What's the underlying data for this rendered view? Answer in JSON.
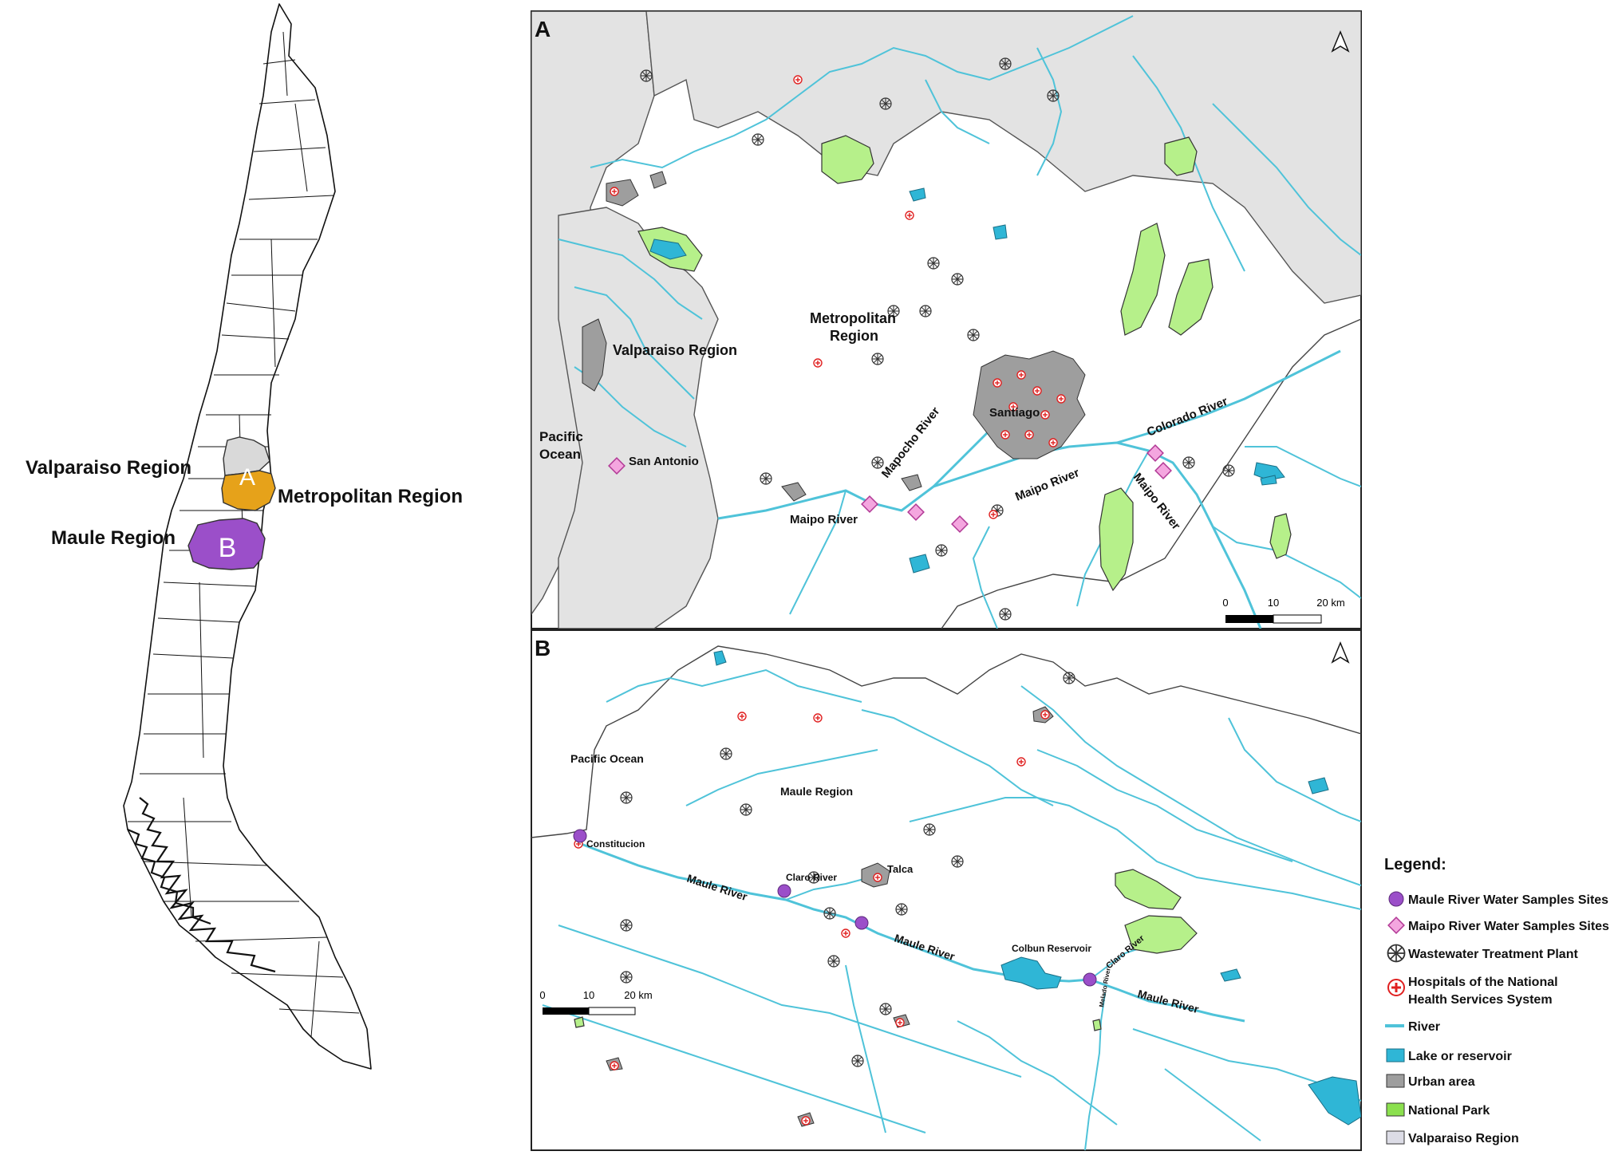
{
  "overview": {
    "valparaiso_label": "Valparaiso Region",
    "metropolitan_label": "Metropolitan Region",
    "maule_label": "Maule Region",
    "inset_a": "A",
    "inset_b": "B",
    "colors": {
      "valparaiso": "#d9d9d9",
      "metropolitan": "#e6a21a",
      "maule": "#9b4fc9"
    }
  },
  "panel_a": {
    "letter": "A",
    "labels": {
      "metropolitan_line1": "Metropolitan",
      "metropolitan_line2": "Region",
      "valparaiso": "Valparaiso Region",
      "pacific_line1": "Pacific",
      "pacific_line2": "Ocean",
      "san_antonio": "San Antonio",
      "santiago": "Santiago",
      "mapocho": "Mapocho River",
      "maipo_1": "Maipo River",
      "maipo_2": "Maipo River",
      "maipo_3": "Maipo River",
      "colorado": "Colorado River"
    },
    "scale": {
      "t0": "0",
      "t1": "10",
      "t2": "20 km"
    }
  },
  "panel_b": {
    "letter": "B",
    "labels": {
      "pacific": "Pacific Ocean",
      "maule_region": "Maule Region",
      "constitucion": "Constitucion",
      "claro_1": "Claro River",
      "talca": "Talca",
      "maule_1": "Maule River",
      "maule_2": "Maule River",
      "colbun": "Colbun Reservoir",
      "claro_2": "Claro River",
      "melado": "Melado River",
      "maule_3": "Maule River"
    },
    "scale": {
      "t0": "0",
      "t1": "10",
      "t2": "20 km"
    }
  },
  "legend": {
    "title": "Legend:",
    "items": {
      "maule_sites": "Maule River Water Samples Sites",
      "maipo_sites": "Maipo River Water Samples Sites",
      "wwtp": "Wastewater Treatment Plant",
      "hospitals_line1": "Hospitals of the National",
      "hospitals_line2": "Health Services System",
      "river": "River",
      "lake": "Lake or reservoir",
      "urban": "Urban area",
      "park": "National Park",
      "valparaiso": "Valparaiso Region"
    },
    "colors": {
      "maule_sites": "#9b4fc9",
      "maipo_sites": "#f4a6df",
      "hospital": "#e02020",
      "river": "#4fc3d9",
      "lake": "#2fb6d6",
      "urban": "#9e9e9e",
      "park": "#8be04e",
      "valparaiso": "#dcdce6"
    }
  }
}
